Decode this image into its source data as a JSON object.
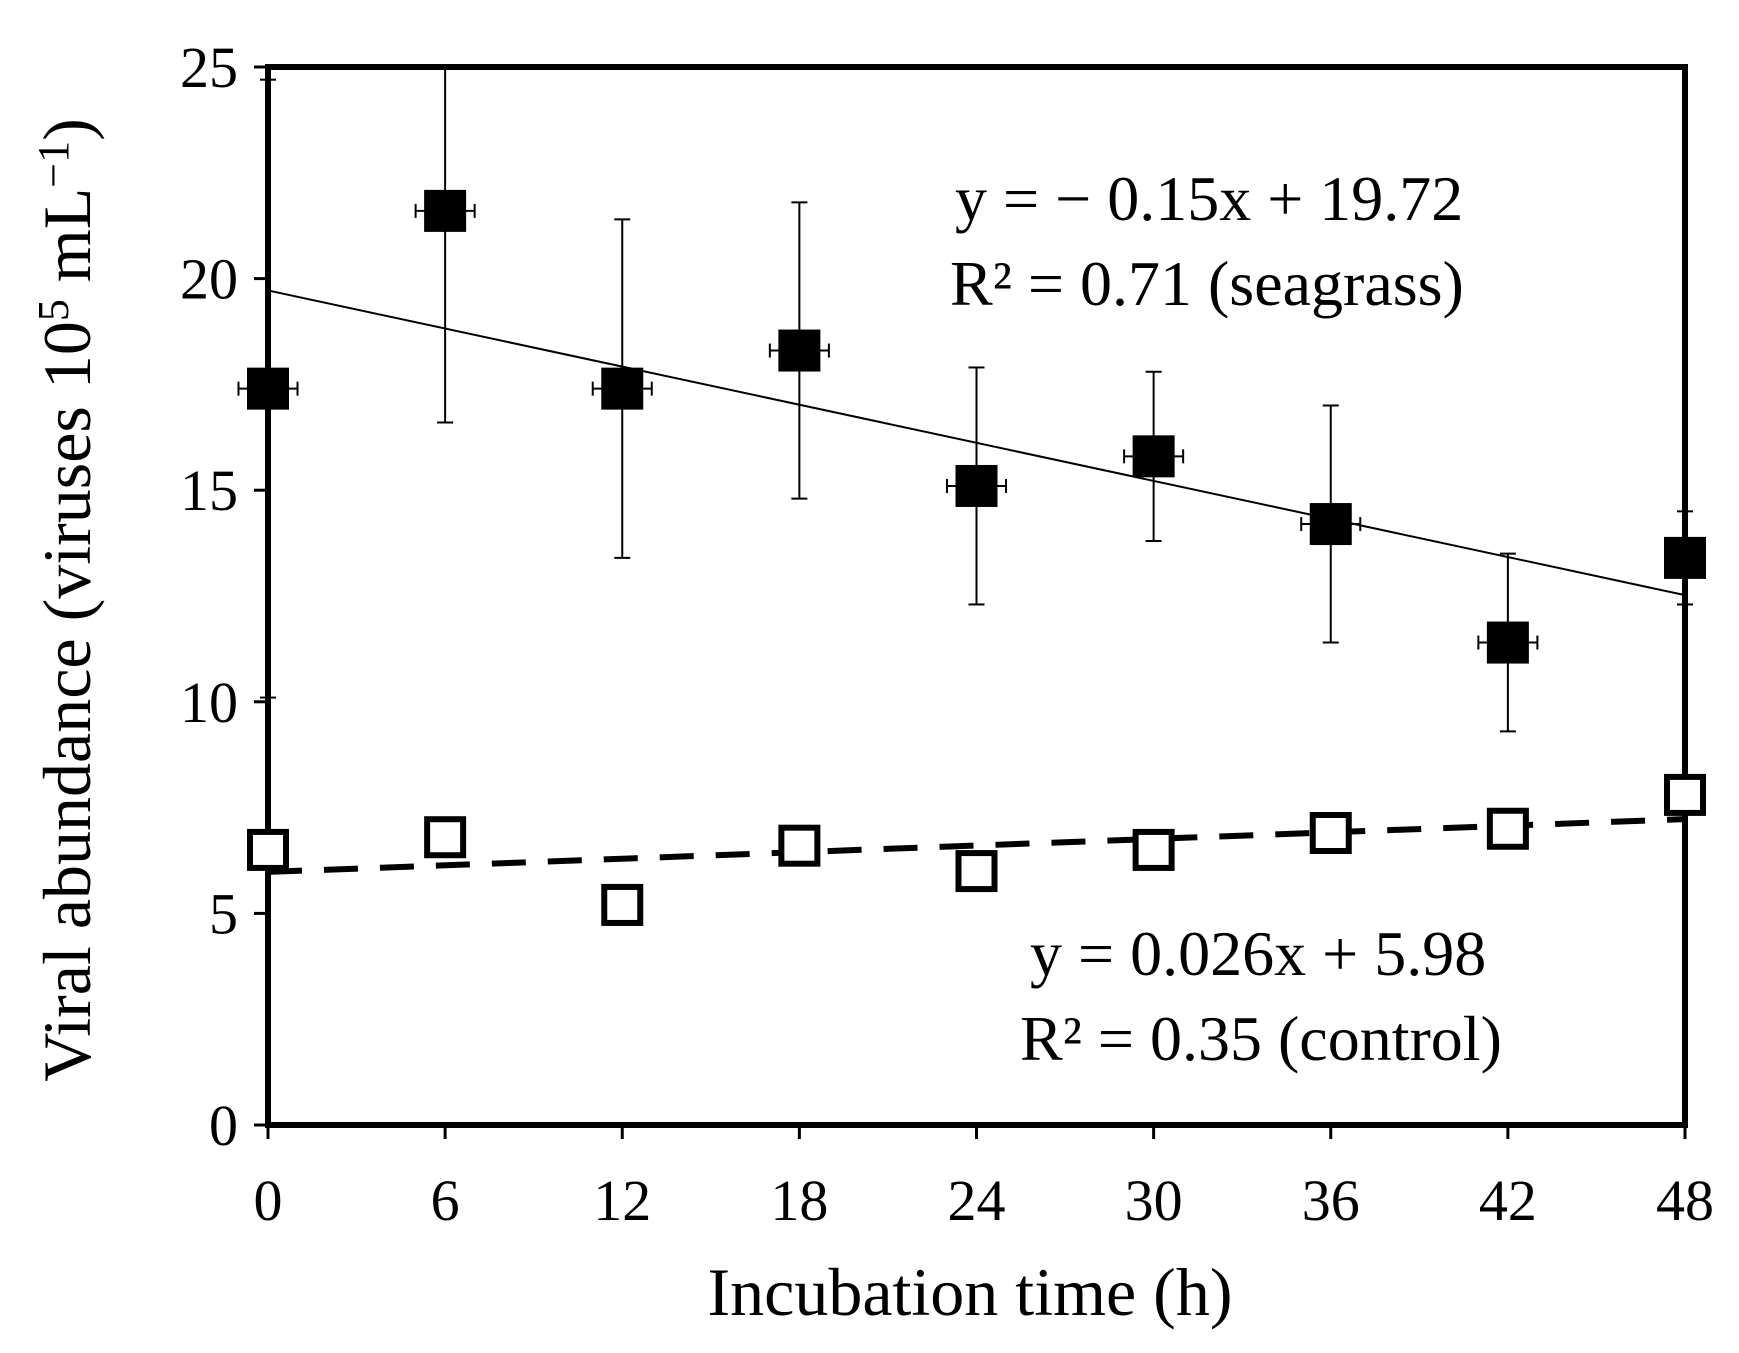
{
  "chart_data": {
    "type": "scatter",
    "xlabel": "Incubation time (h)",
    "ylabel": {
      "base": "Viral abundance (viruses 10",
      "sup1": "5",
      "mid": " mL",
      "sup2": "−1",
      "end": ")"
    },
    "xlim": [
      0,
      48
    ],
    "ylim": [
      0,
      25
    ],
    "xticks": [
      0,
      6,
      12,
      18,
      24,
      30,
      36,
      42,
      48
    ],
    "yticks": [
      0,
      5,
      10,
      15,
      20,
      25
    ],
    "grid": false,
    "series": [
      {
        "name": "seagrass",
        "marker": "filled-square",
        "x": [
          0,
          6,
          12,
          18,
          24,
          30,
          36,
          42,
          48
        ],
        "y": [
          17.4,
          21.6,
          17.4,
          18.3,
          15.1,
          15.8,
          14.2,
          11.4,
          13.4
        ],
        "y_err": [
          7.3,
          5.0,
          4.0,
          3.5,
          2.8,
          2.0,
          2.8,
          2.1,
          1.1
        ],
        "x_err": [
          1.0,
          1.0,
          1.0,
          1.0,
          1.0,
          1.0,
          1.0,
          1.0,
          0.0
        ],
        "fit": {
          "slope": -0.15,
          "intercept": 19.72,
          "style": "solid"
        },
        "equation": "y = − 0.15x + 19.72",
        "r2_label": "R² = 0.71 (seagrass)"
      },
      {
        "name": "control",
        "marker": "open-square",
        "x": [
          0,
          6,
          12,
          18,
          24,
          30,
          36,
          42,
          48
        ],
        "y": [
          6.5,
          6.8,
          5.2,
          6.6,
          6.0,
          6.5,
          6.9,
          7.0,
          7.8
        ],
        "fit": {
          "slope": 0.026,
          "intercept": 5.98,
          "style": "dashed"
        },
        "equation": "y = 0.026x + 5.98",
        "r2_label": "R² = 0.35 (control)"
      }
    ]
  }
}
